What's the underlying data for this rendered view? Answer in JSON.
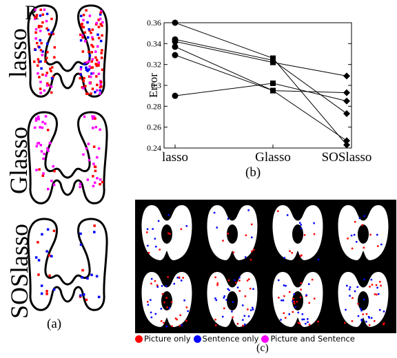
{
  "panel_a": {
    "corner_label": "R",
    "row_labels": [
      "lasso",
      "Glasso",
      "SOSlasso"
    ],
    "caption": "(a)"
  },
  "panel_b": {
    "caption": "(b)"
  },
  "panel_c": {
    "caption": "(c)"
  },
  "legend": [
    {
      "label": "Picture only",
      "color": "#ff0000"
    },
    {
      "label": "Sentence only",
      "color": "#0000ff"
    },
    {
      "label": "Picture and Sentence",
      "color": "#ff00ff"
    }
  ],
  "chart_data": {
    "type": "line",
    "categories": [
      "lasso",
      "Glasso",
      "SOSlasso"
    ],
    "xlabel": "",
    "ylabel": "Error",
    "ylim": [
      0.24,
      0.36
    ],
    "yticks": [
      "0.24",
      "0.26",
      "0.28",
      "0.3",
      "0.32",
      "0.34",
      "0.36"
    ],
    "series": [
      {
        "values": [
          0.36,
          0.326,
          0.243
        ]
      },
      {
        "values": [
          0.344,
          0.324,
          0.273
        ]
      },
      {
        "values": [
          0.342,
          0.322,
          0.309
        ]
      },
      {
        "values": [
          0.337,
          0.295,
          0.293
        ]
      },
      {
        "values": [
          0.329,
          0.295,
          0.247
        ]
      },
      {
        "values": [
          0.29,
          0.302,
          0.285
        ]
      }
    ],
    "markers": [
      "circle",
      "square",
      "diamond"
    ]
  }
}
